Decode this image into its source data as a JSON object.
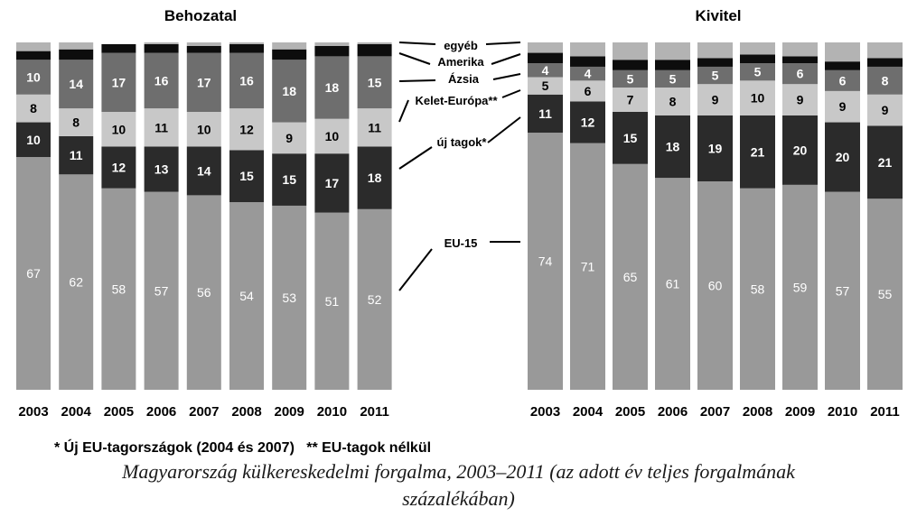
{
  "chart_data": [
    {
      "type": "bar",
      "stacked": true,
      "title": "Behozatal",
      "categories": [
        "2003",
        "2004",
        "2005",
        "2006",
        "2007",
        "2008",
        "2009",
        "2010",
        "2011"
      ],
      "series": [
        {
          "name": "EU-15",
          "values": [
            67,
            62,
            58,
            57,
            56,
            54,
            53,
            51,
            52
          ],
          "color": "#999999"
        },
        {
          "name": "új tagok*",
          "values": [
            10,
            11,
            12,
            13,
            14,
            15,
            15,
            17,
            18
          ],
          "color": "#2b2b2b"
        },
        {
          "name": "Kelet-Európa**",
          "values": [
            8,
            8,
            10,
            11,
            10,
            12,
            9,
            10,
            11
          ],
          "color": "#c8c8c8"
        },
        {
          "name": "Ázsia",
          "values": [
            10,
            14,
            17,
            16,
            17,
            16,
            18,
            18,
            15
          ],
          "color": "#6e6e6e"
        },
        {
          "name": "Amerika",
          "values": [
            2.5,
            3,
            2.5,
            2.5,
            2,
            2.5,
            3,
            3,
            3.5
          ],
          "color": "#0d0d0d"
        },
        {
          "name": "egyéb",
          "values": [
            2.5,
            2,
            0,
            0.5,
            1,
            0.5,
            2,
            1,
            0.5
          ],
          "color": "#b3b3b3"
        }
      ],
      "labeled_series": [
        "EU-15",
        "új tagok*",
        "Kelet-Európa**",
        "Ázsia"
      ],
      "ylim": [
        0,
        100
      ]
    },
    {
      "type": "bar",
      "stacked": true,
      "title": "Kivitel",
      "categories": [
        "2003",
        "2004",
        "2005",
        "2006",
        "2007",
        "2008",
        "2009",
        "2010",
        "2011"
      ],
      "series": [
        {
          "name": "EU-15",
          "values": [
            74,
            71,
            65,
            61,
            60,
            58,
            59,
            57,
            55
          ],
          "color": "#999999"
        },
        {
          "name": "új tagok*",
          "values": [
            11,
            12,
            15,
            18,
            19,
            21,
            20,
            20,
            21
          ],
          "color": "#2b2b2b"
        },
        {
          "name": "Kelet-Európa**",
          "values": [
            5,
            6,
            7,
            8,
            9,
            10,
            9,
            9,
            9
          ],
          "color": "#c8c8c8"
        },
        {
          "name": "Ázsia",
          "values": [
            4,
            4,
            5,
            5,
            5,
            5,
            6,
            6,
            8
          ],
          "color": "#6e6e6e"
        },
        {
          "name": "Amerika",
          "values": [
            3,
            3,
            3,
            3,
            2.5,
            2.5,
            2,
            2.5,
            2.5
          ],
          "color": "#0d0d0d"
        },
        {
          "name": "egyéb",
          "values": [
            3,
            4,
            5,
            5,
            4.5,
            3.5,
            4,
            5.5,
            4.5
          ],
          "color": "#b3b3b3"
        }
      ],
      "labeled_series": [
        "EU-15",
        "új tagok*",
        "Kelet-Európa**",
        "Ázsia"
      ],
      "ylim": [
        0,
        100
      ]
    }
  ],
  "legend_labels": [
    "egyéb",
    "Amerika",
    "Ázsia",
    "Kelet-Európa**",
    "új tagok*",
    "EU-15"
  ],
  "notes": "* Új EU-tagországok (2004 és 2007)   ** EU-tagok nélkül",
  "caption_line1": "Magyarország külkereskedelmi forgalma, 2003–2011 (az adott év teljes forgalmának",
  "caption_line2": "százalékában)"
}
